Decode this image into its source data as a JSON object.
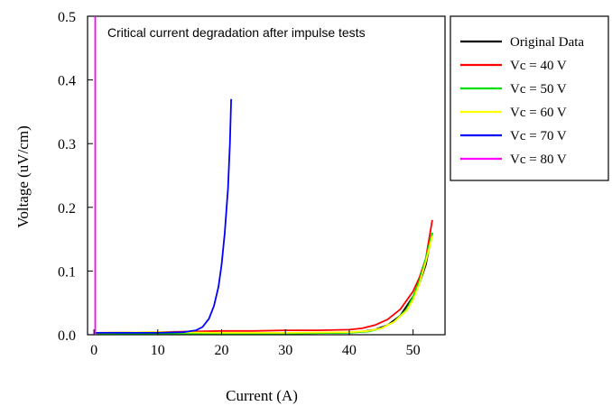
{
  "chart_data": {
    "type": "line",
    "title": "",
    "annotation": "Critical current degradation after impulse tests",
    "xlabel": "Current (A)",
    "ylabel": "Voltage (uV/cm)",
    "xlim": [
      -1,
      55
    ],
    "ylim": [
      0,
      0.5
    ],
    "xticks": [
      0,
      10,
      20,
      30,
      40,
      50
    ],
    "yticks": [
      0.0,
      0.1,
      0.2,
      0.3,
      0.4,
      0.5
    ],
    "xtick_labels": [
      "0",
      "10",
      "20",
      "30",
      "40",
      "50"
    ],
    "ytick_labels": [
      "0.0",
      "0.1",
      "0.2",
      "0.3",
      "0.4",
      "0.5"
    ],
    "grid": false,
    "legend_position": "outside-right",
    "series": [
      {
        "name": "Original Data",
        "color": "#000000",
        "points": [
          [
            0,
            0.002
          ],
          [
            10,
            0.002
          ],
          [
            20,
            0.002
          ],
          [
            30,
            0.002
          ],
          [
            38,
            0.003
          ],
          [
            42,
            0.005
          ],
          [
            44,
            0.008
          ],
          [
            46,
            0.015
          ],
          [
            48,
            0.03
          ],
          [
            50,
            0.06
          ],
          [
            51,
            0.08
          ],
          [
            52,
            0.11
          ],
          [
            53,
            0.16
          ]
        ]
      },
      {
        "name": "Vc = 40 V",
        "color": "#ff0000",
        "points": [
          [
            0,
            0.003
          ],
          [
            10,
            0.004
          ],
          [
            20,
            0.006
          ],
          [
            25,
            0.006
          ],
          [
            30,
            0.007
          ],
          [
            35,
            0.007
          ],
          [
            40,
            0.008
          ],
          [
            42,
            0.01
          ],
          [
            44,
            0.015
          ],
          [
            46,
            0.024
          ],
          [
            48,
            0.04
          ],
          [
            50,
            0.068
          ],
          [
            51,
            0.09
          ],
          [
            52,
            0.12
          ],
          [
            52.5,
            0.15
          ],
          [
            53,
            0.18
          ]
        ]
      },
      {
        "name": "Vc = 50 V",
        "color": "#00e000",
        "points": [
          [
            0,
            0.002
          ],
          [
            10,
            0.002
          ],
          [
            20,
            0.002
          ],
          [
            30,
            0.002
          ],
          [
            40,
            0.003
          ],
          [
            43,
            0.005
          ],
          [
            45,
            0.01
          ],
          [
            47,
            0.02
          ],
          [
            49,
            0.04
          ],
          [
            50,
            0.06
          ],
          [
            51,
            0.085
          ],
          [
            52,
            0.12
          ],
          [
            53,
            0.16
          ]
        ]
      },
      {
        "name": "Vc = 60 V",
        "color": "#ffff00",
        "points": [
          [
            0,
            0.003
          ],
          [
            10,
            0.004
          ],
          [
            20,
            0.003
          ],
          [
            30,
            0.003
          ],
          [
            40,
            0.004
          ],
          [
            43,
            0.006
          ],
          [
            45,
            0.01
          ],
          [
            47,
            0.02
          ],
          [
            49,
            0.038
          ],
          [
            50,
            0.055
          ],
          [
            51,
            0.08
          ],
          [
            52,
            0.115
          ],
          [
            53,
            0.155
          ]
        ]
      },
      {
        "name": "Vc = 70 V",
        "color": "#0000ff",
        "points": [
          [
            0,
            0.003
          ],
          [
            5,
            0.003
          ],
          [
            10,
            0.003
          ],
          [
            14,
            0.004
          ],
          [
            16,
            0.007
          ],
          [
            17,
            0.012
          ],
          [
            18,
            0.025
          ],
          [
            18.8,
            0.045
          ],
          [
            19.5,
            0.075
          ],
          [
            20,
            0.11
          ],
          [
            20.5,
            0.16
          ],
          [
            21,
            0.23
          ],
          [
            21.3,
            0.3
          ],
          [
            21.5,
            0.37
          ]
        ]
      },
      {
        "name": "Vc = 80 V",
        "color": "#ff00ff",
        "points": [
          [
            0.2,
            0.0
          ],
          [
            0.2,
            0.5
          ]
        ]
      }
    ]
  }
}
